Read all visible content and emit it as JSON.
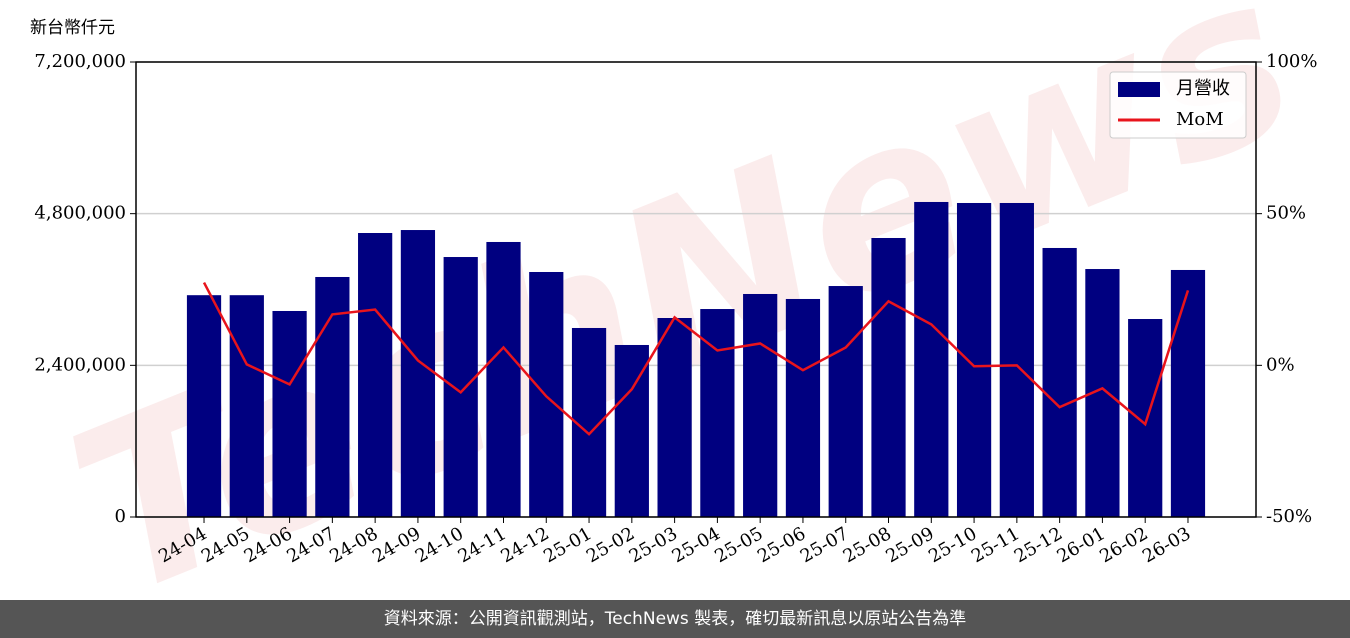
{
  "chart_data": {
    "type": "bar_line",
    "y_label": "新台幣仟元",
    "watermark": "TechNews",
    "categories": [
      "24-04",
      "24-05",
      "24-06",
      "24-07",
      "24-08",
      "24-09",
      "24-10",
      "24-11",
      "24-12",
      "25-01",
      "25-02",
      "25-03",
      "25-04",
      "25-05",
      "25-06",
      "25-07",
      "25-08",
      "25-09",
      "25-10",
      "25-11",
      "25-12",
      "26-01",
      "26-02",
      "26-03"
    ],
    "series": [
      {
        "name": "月營收",
        "type": "bar",
        "color": "#000080",
        "values": [
          3510000,
          3510000,
          3260000,
          3798000,
          4494000,
          4541000,
          4114000,
          4352000,
          3877000,
          2991000,
          2722000,
          3149000,
          3291000,
          3529000,
          3450000,
          3655000,
          4415000,
          4985000,
          4969000,
          4969000,
          4257000,
          3924000,
          3133000,
          3909000
        ]
      },
      {
        "name": "MoM",
        "type": "line",
        "axis": "y2",
        "color": "#e8141c",
        "values": [
          27.3,
          0.3,
          -6.3,
          16.8,
          18.4,
          1.6,
          -8.9,
          5.9,
          -10.2,
          -22.7,
          -7.9,
          15.8,
          4.9,
          7.2,
          -1.6,
          5.9,
          21.1,
          13.5,
          -0.3,
          0,
          -13.8,
          -7.6,
          -19.4,
          24.7
        ]
      }
    ],
    "ylim": [
      0,
      7200000
    ],
    "yticks": [
      0,
      {
        "value": 2400000,
        "label": "2,400,000"
      },
      {
        "value": 4800000,
        "label": "4,800,000"
      },
      {
        "value": 7200000,
        "label": "7,200,000"
      }
    ],
    "y2lim": [
      -50,
      100
    ],
    "y2ticks": [
      {
        "value": -50,
        "label": "-50%"
      },
      {
        "value": 0,
        "label": "0%"
      },
      {
        "value": 50,
        "label": "50%"
      },
      {
        "value": 100,
        "label": "100%"
      }
    ],
    "grid": true,
    "legend": "upper right"
  },
  "footer": "資料來源：公開資訊觀測站，TechNews 製表，確切最新訊息以原站公告為準"
}
